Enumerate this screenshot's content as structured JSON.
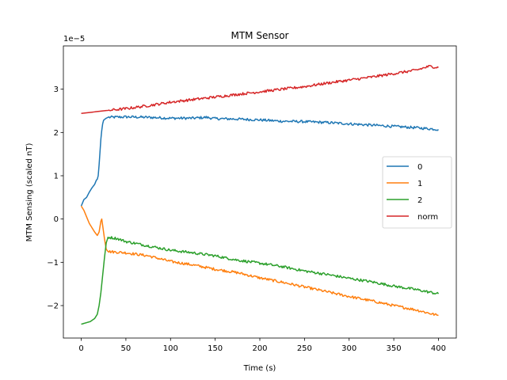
{
  "chart_data": {
    "type": "line",
    "title": "MTM Sensor",
    "xlabel": "Time (s)",
    "ylabel": "MTM Sensing (scaled nT)",
    "y_scale_label": "1e−5",
    "xlim": [
      -20,
      420
    ],
    "ylim": [
      -2.75,
      4.0
    ],
    "xticks": [
      0,
      50,
      100,
      150,
      200,
      250,
      300,
      350,
      400
    ],
    "yticks": [
      -2,
      -1,
      0,
      1,
      2,
      3
    ],
    "grid": false,
    "legend_position": "center-right",
    "series": [
      {
        "name": "0",
        "color": "#1f77b4",
        "points": [
          [
            0,
            0.3
          ],
          [
            3,
            0.45
          ],
          [
            6,
            0.5
          ],
          [
            9,
            0.62
          ],
          [
            12,
            0.72
          ],
          [
            15,
            0.8
          ],
          [
            17,
            0.9
          ],
          [
            18,
            0.92
          ],
          [
            19,
            1.0
          ],
          [
            20,
            1.25
          ],
          [
            21,
            1.55
          ],
          [
            22,
            1.85
          ],
          [
            23,
            2.05
          ],
          [
            24,
            2.2
          ],
          [
            25,
            2.28
          ],
          [
            26,
            2.3
          ],
          [
            28,
            2.33
          ],
          [
            30,
            2.35
          ],
          [
            50,
            2.36
          ],
          [
            75,
            2.35
          ],
          [
            100,
            2.33
          ],
          [
            125,
            2.33
          ],
          [
            140,
            2.35
          ],
          [
            150,
            2.32
          ],
          [
            175,
            2.31
          ],
          [
            200,
            2.29
          ],
          [
            225,
            2.26
          ],
          [
            250,
            2.25
          ],
          [
            275,
            2.23
          ],
          [
            300,
            2.2
          ],
          [
            325,
            2.17
          ],
          [
            350,
            2.14
          ],
          [
            375,
            2.11
          ],
          [
            400,
            2.07
          ]
        ]
      },
      {
        "name": "1",
        "color": "#ff7f0e",
        "points": [
          [
            0,
            0.3
          ],
          [
            3,
            0.2
          ],
          [
            6,
            0.05
          ],
          [
            9,
            -0.1
          ],
          [
            12,
            -0.2
          ],
          [
            15,
            -0.3
          ],
          [
            18,
            -0.38
          ],
          [
            20,
            -0.3
          ],
          [
            22,
            -0.05
          ],
          [
            23,
            0.0
          ],
          [
            24,
            -0.15
          ],
          [
            26,
            -0.45
          ],
          [
            28,
            -0.7
          ],
          [
            30,
            -0.75
          ],
          [
            50,
            -0.78
          ],
          [
            75,
            -0.85
          ],
          [
            100,
            -0.98
          ],
          [
            125,
            -1.06
          ],
          [
            150,
            -1.16
          ],
          [
            175,
            -1.24
          ],
          [
            200,
            -1.36
          ],
          [
            225,
            -1.46
          ],
          [
            250,
            -1.57
          ],
          [
            275,
            -1.68
          ],
          [
            300,
            -1.79
          ],
          [
            325,
            -1.89
          ],
          [
            350,
            -2.0
          ],
          [
            375,
            -2.1
          ],
          [
            400,
            -2.23
          ]
        ]
      },
      {
        "name": "2",
        "color": "#2ca02c",
        "points": [
          [
            0,
            -2.43
          ],
          [
            5,
            -2.4
          ],
          [
            10,
            -2.37
          ],
          [
            15,
            -2.3
          ],
          [
            18,
            -2.2
          ],
          [
            20,
            -2.0
          ],
          [
            22,
            -1.7
          ],
          [
            24,
            -1.3
          ],
          [
            26,
            -0.9
          ],
          [
            28,
            -0.55
          ],
          [
            30,
            -0.42
          ],
          [
            40,
            -0.45
          ],
          [
            50,
            -0.52
          ],
          [
            75,
            -0.62
          ],
          [
            100,
            -0.72
          ],
          [
            125,
            -0.78
          ],
          [
            150,
            -0.85
          ],
          [
            175,
            -0.95
          ],
          [
            200,
            -1.02
          ],
          [
            225,
            -1.1
          ],
          [
            250,
            -1.2
          ],
          [
            275,
            -1.28
          ],
          [
            300,
            -1.37
          ],
          [
            325,
            -1.45
          ],
          [
            350,
            -1.55
          ],
          [
            375,
            -1.63
          ],
          [
            400,
            -1.73
          ]
        ]
      },
      {
        "name": "norm",
        "color": "#d62728",
        "points": [
          [
            0,
            2.44
          ],
          [
            25,
            2.5
          ],
          [
            50,
            2.55
          ],
          [
            75,
            2.62
          ],
          [
            100,
            2.7
          ],
          [
            125,
            2.76
          ],
          [
            150,
            2.82
          ],
          [
            175,
            2.88
          ],
          [
            200,
            2.94
          ],
          [
            225,
            3.0
          ],
          [
            250,
            3.06
          ],
          [
            275,
            3.14
          ],
          [
            300,
            3.21
          ],
          [
            325,
            3.28
          ],
          [
            350,
            3.36
          ],
          [
            375,
            3.44
          ],
          [
            390,
            3.53
          ],
          [
            400,
            3.5
          ]
        ]
      }
    ]
  }
}
